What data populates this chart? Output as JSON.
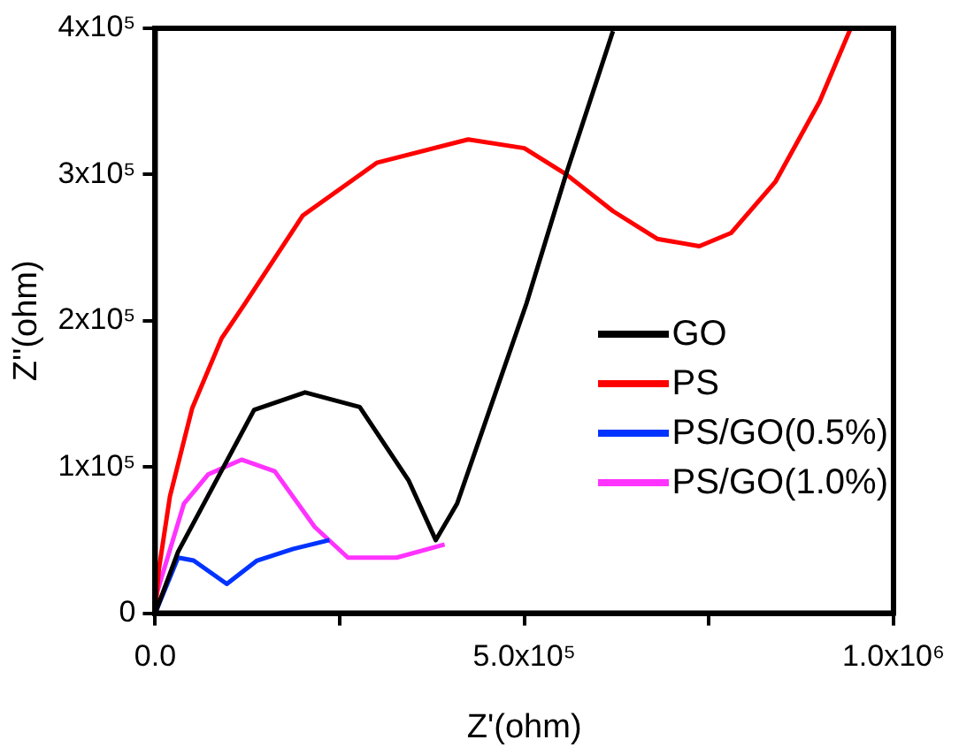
{
  "chart_data": {
    "type": "line",
    "xlabel": "Z'(ohm)",
    "ylabel": "Z''(ohm)",
    "xlim": [
      0,
      1000000
    ],
    "ylim": [
      0,
      400000
    ],
    "xticks": [
      {
        "value": 0,
        "label": "0.0"
      },
      {
        "value": 250000,
        "label": null
      },
      {
        "value": 500000,
        "label": "5.0x10⁵"
      },
      {
        "value": 750000,
        "label": null
      },
      {
        "value": 1000000,
        "label": "1.0x10⁶"
      }
    ],
    "yticks": [
      {
        "value": 0,
        "label": "0"
      },
      {
        "value": 100000,
        "label": "1x10⁵"
      },
      {
        "value": 200000,
        "label": "2x10⁵"
      },
      {
        "value": 300000,
        "label": "3x10⁵"
      },
      {
        "value": 400000,
        "label": "4x10⁵"
      }
    ],
    "grid": false,
    "legend": "right",
    "marker": "none",
    "line_style": "solid",
    "series": [
      {
        "name": "GO",
        "color": "#000000",
        "x": [
          0,
          31000,
          134000,
          203000,
          277000,
          343000,
          380000,
          409000,
          503000,
          557000,
          620000
        ],
        "values": [
          0,
          42000,
          139000,
          151000,
          141000,
          91000,
          50000,
          75000,
          212000,
          301000,
          398000
        ]
      },
      {
        "name": "PS",
        "color": "#ff0000",
        "x": [
          0,
          5000,
          20000,
          50000,
          90000,
          122000,
          200000,
          300000,
          424000,
          500000,
          557000,
          620000,
          680000,
          737000,
          780000,
          840000,
          900000,
          942000
        ],
        "values": [
          0,
          30000,
          80000,
          140000,
          188000,
          212000,
          272000,
          308000,
          324000,
          318000,
          300000,
          275000,
          256000,
          251000,
          260000,
          295000,
          350000,
          400000
        ]
      },
      {
        "name": "PS/GO(0.5%)",
        "color": "#0033ff",
        "x": [
          0,
          31000,
          52000,
          97000,
          138000,
          187000,
          236000
        ],
        "values": [
          0,
          38000,
          36000,
          20000,
          36000,
          44000,
          50000
        ]
      },
      {
        "name": "PS/GO(1.0%)",
        "color": "#ff33ff",
        "x": [
          0,
          39000,
          72000,
          117000,
          162000,
          216000,
          261000,
          327000,
          392000
        ],
        "values": [
          10000,
          75000,
          95000,
          105000,
          97000,
          59000,
          38000,
          38000,
          47000
        ]
      }
    ]
  }
}
